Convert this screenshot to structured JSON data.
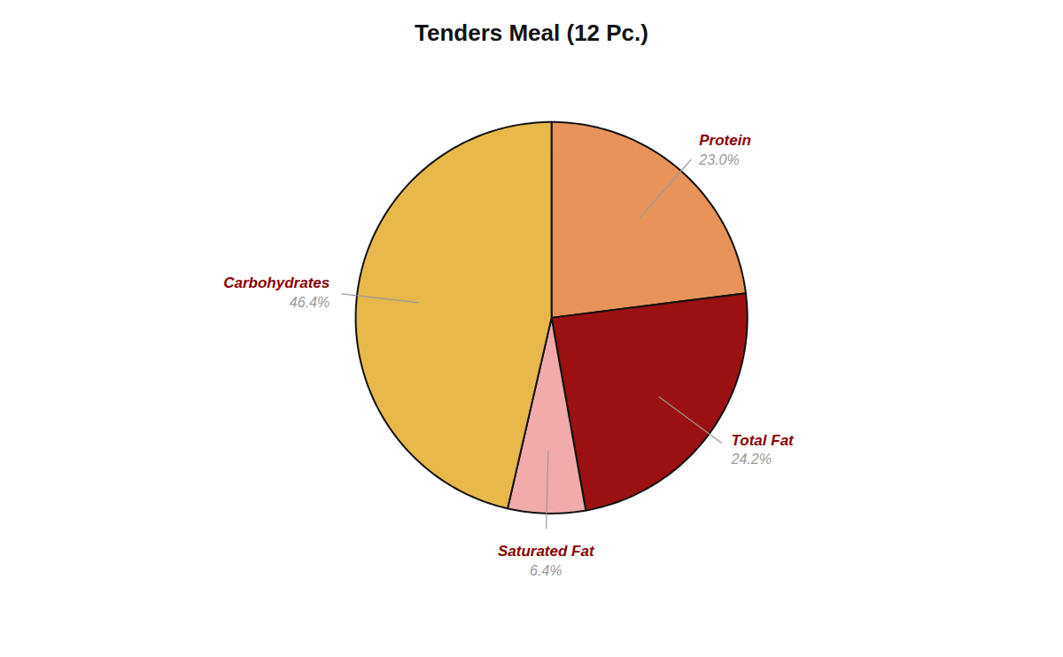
{
  "chart_data": {
    "type": "pie",
    "title": "Tenders Meal (12 Pc.)",
    "categories": [
      "Protein",
      "Total Fat",
      "Saturated Fat",
      "Carbohydrates"
    ],
    "values": [
      23.0,
      24.2,
      6.4,
      46.4
    ],
    "value_labels": [
      "23.0%",
      "24.2%",
      "6.4%",
      "46.4%"
    ],
    "colors": [
      "#E8935A",
      "#9B1010",
      "#F2AAAA",
      "#E8B84B"
    ],
    "data_labels": true
  }
}
